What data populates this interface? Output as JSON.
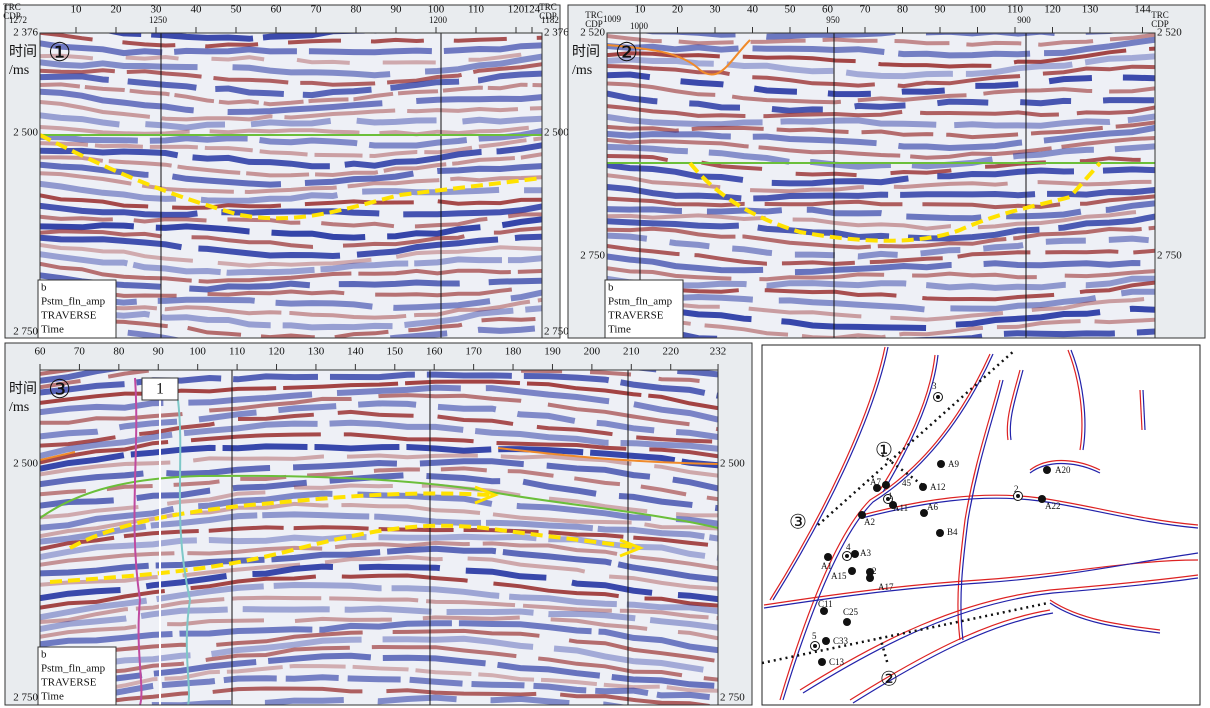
{
  "panels": [
    {
      "label": "①",
      "trc_cdp": [
        "TRC",
        "CDP"
      ],
      "trc_ticks": [
        10,
        20,
        30,
        40,
        50,
        60,
        70,
        80,
        90,
        100,
        110,
        120,
        124
      ],
      "cdp_labels": [
        "1272",
        "1250",
        "1200",
        "1182"
      ],
      "time_axis": [
        "时间",
        "/ms"
      ],
      "left_times": [
        "2 376",
        "2 500",
        "2 750"
      ],
      "right_times": [
        "2 376",
        "2 500",
        "2 750"
      ],
      "legend": [
        "b",
        "Pstm_fln_amp",
        "TRAVERSE",
        "Time"
      ]
    },
    {
      "label": "②",
      "trc_cdp": [
        "TRC",
        "CDP"
      ],
      "trc_ticks": [
        10,
        20,
        30,
        40,
        50,
        60,
        70,
        80,
        90,
        100,
        110,
        120,
        130,
        144
      ],
      "cdp_labels": [
        "1009",
        "1000",
        "950",
        "900"
      ],
      "time_axis": [
        "时间",
        "/ms"
      ],
      "left_times": [
        "2 520",
        "2 750"
      ],
      "right_times": [
        "2 520",
        "2 750"
      ],
      "legend": [
        "b",
        "Pstm_fln_amp",
        "TRAVERSE",
        "Time"
      ]
    },
    {
      "label": "③",
      "trc_ticks": [
        60,
        70,
        80,
        90,
        100,
        110,
        120,
        130,
        140,
        150,
        160,
        170,
        180,
        190,
        200,
        210,
        220,
        232
      ],
      "well": "1",
      "time_axis": [
        "时间",
        "/ms"
      ],
      "left_times": [
        "2 500",
        "2 750"
      ],
      "right_times": [
        "2 500",
        "2 750"
      ],
      "legend": [
        "b",
        "Pstm_fln_amp",
        "TRAVERSE",
        "Time"
      ]
    }
  ],
  "map": {
    "wells": [
      "3",
      "A9",
      "A12",
      "A20",
      "A7",
      "45",
      "1",
      "A11",
      "A6",
      "2",
      "A22",
      "A2",
      "B4",
      "4",
      "A3",
      "A1",
      "A15",
      "2",
      "A17",
      "C11",
      "C25",
      "5",
      "C33",
      "C13"
    ],
    "sections": [
      "①",
      "②",
      "③"
    ]
  }
}
